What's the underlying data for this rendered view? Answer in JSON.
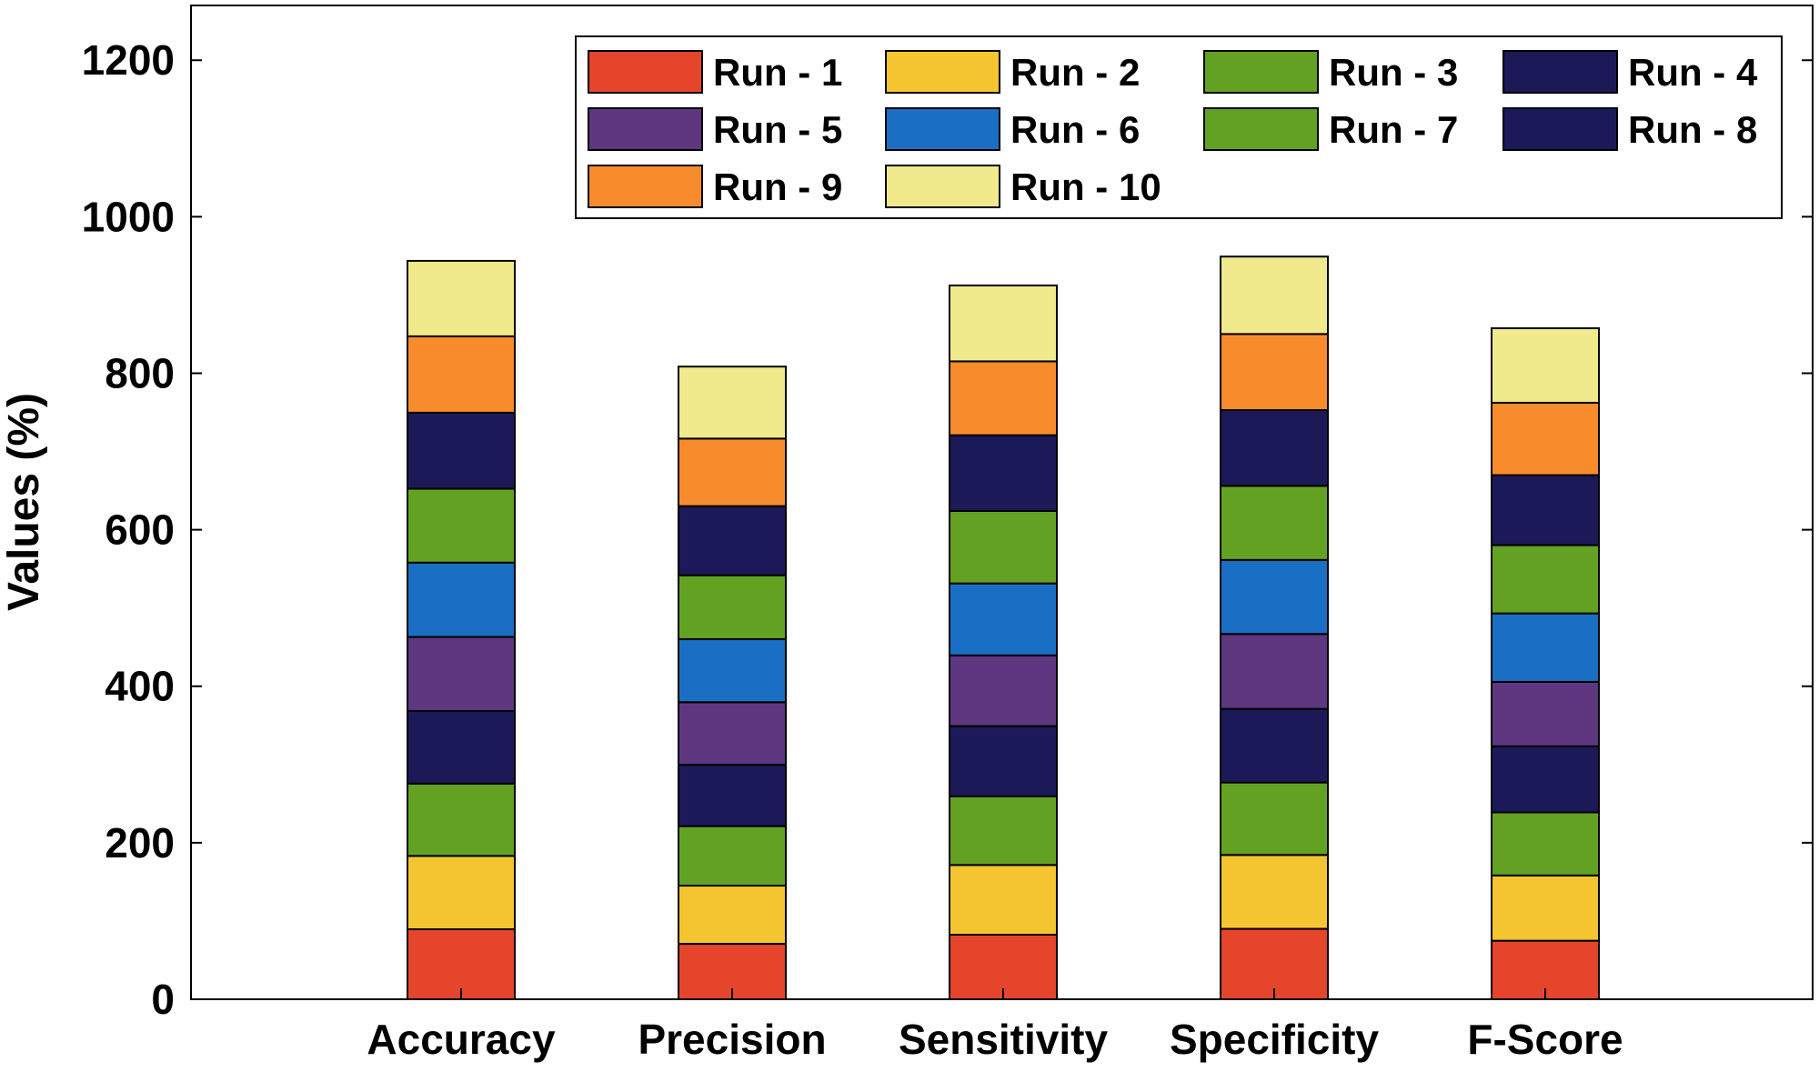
{
  "chart_data": {
    "type": "bar",
    "stacked": true,
    "title": "",
    "xlabel": "",
    "ylabel": "Values (%)",
    "ylim": [
      0,
      1270
    ],
    "yticks": [
      0,
      200,
      400,
      600,
      800,
      1000,
      1200
    ],
    "legend_position": "top-right",
    "categories": [
      "Accuracy",
      "Precision",
      "Sensitivity",
      "Specificity",
      "F-Score"
    ],
    "series": [
      {
        "name": "Run - 1",
        "color": "#e5452a",
        "values": [
          89.5,
          70.8,
          82.5,
          90.0,
          74.8
        ]
      },
      {
        "name": "Run - 2",
        "color": "#f4c531",
        "values": [
          93.7,
          74.4,
          89.1,
          94.4,
          83.4
        ]
      },
      {
        "name": "Run - 3",
        "color": "#63a123",
        "values": [
          92.4,
          76.0,
          87.8,
          92.6,
          80.6
        ]
      },
      {
        "name": "Run - 4",
        "color": "#1c1959",
        "values": [
          92.8,
          78.4,
          89.6,
          94.0,
          84.5
        ]
      },
      {
        "name": "Run - 5",
        "color": "#5e3780",
        "values": [
          94.6,
          80.0,
          90.5,
          95.8,
          82.3
        ]
      },
      {
        "name": "Run - 6",
        "color": "#1a6fc4",
        "values": [
          95.0,
          80.6,
          91.9,
          94.6,
          87.5
        ]
      },
      {
        "name": "Run - 7",
        "color": "#63a123",
        "values": [
          94.4,
          81.6,
          92.6,
          94.7,
          87.2
        ]
      },
      {
        "name": "Run - 8",
        "color": "#1c1959",
        "values": [
          97.2,
          88.4,
          96.8,
          96.8,
          89.5
        ]
      },
      {
        "name": "Run - 9",
        "color": "#f88c2d",
        "values": [
          97.6,
          86.3,
          94.4,
          97.2,
          92.5
        ]
      },
      {
        "name": "Run - 10",
        "color": "#f1ea8c",
        "values": [
          96.4,
          92.0,
          97.0,
          99.0,
          95.2
        ]
      }
    ]
  }
}
